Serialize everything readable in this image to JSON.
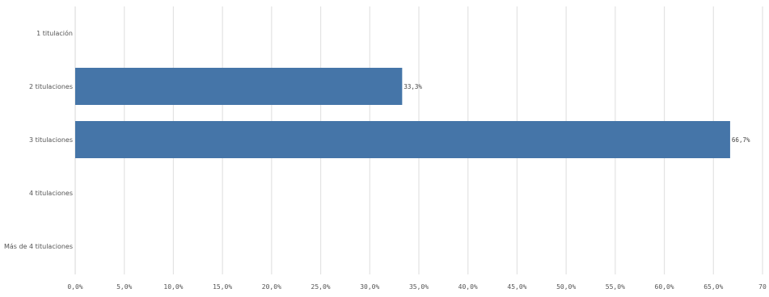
{
  "chart_data": {
    "type": "bar",
    "orientation": "horizontal",
    "categories": [
      "1 titulación",
      "2 titulaciones",
      "3 titulaciones",
      "4 titulaciones",
      "Más de 4 titulaciones"
    ],
    "values": [
      0,
      33.3,
      66.7,
      0,
      0
    ],
    "data_labels": [
      "",
      "33,3%",
      "66,7%",
      "",
      ""
    ],
    "x_ticks": [
      "0,0%",
      "5,0%",
      "10,0%",
      "15,0%",
      "20,0%",
      "25,0%",
      "30,0%",
      "35,0%",
      "40,0%",
      "45,0%",
      "50,0%",
      "55,0%",
      "60,0%",
      "65,0%",
      "70"
    ],
    "xlim": [
      0,
      70
    ],
    "grid": true,
    "bar_color": "#4575a8",
    "title": "",
    "xlabel": "",
    "ylabel": ""
  }
}
